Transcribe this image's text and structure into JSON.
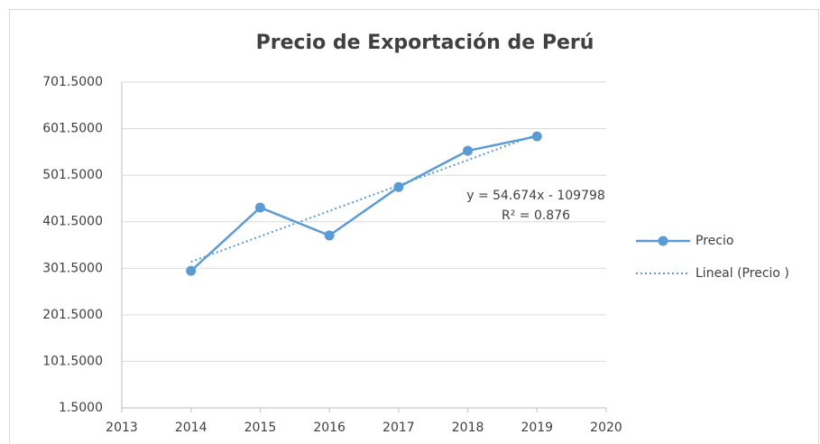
{
  "chart_data": {
    "type": "line",
    "title": "Precio de Exportación de Perú",
    "x": [
      2014,
      2015,
      2016,
      2017,
      2018,
      2019
    ],
    "series": [
      {
        "name": "Precio",
        "color": "#5b9bd5",
        "x": [
          2014,
          2015,
          2016,
          2017,
          2018,
          2019
        ],
        "values": [
          296,
          432,
          372,
          476,
          554,
          585
        ],
        "style": "solid",
        "markers": true
      },
      {
        "name": "Lineal (Precio )",
        "color": "#5b9bd5",
        "x": [
          2014,
          2019
        ],
        "values": [
          315.4,
          588.8
        ],
        "style": "dotted",
        "markers": false
      }
    ],
    "annotations": [
      "y = 54.674x - 109798",
      "R² = 0.876"
    ],
    "xlim": [
      2013,
      2020
    ],
    "xticks": [
      2013,
      2014,
      2015,
      2016,
      2017,
      2018,
      2019,
      2020
    ],
    "ylim": [
      1.5,
      701.5
    ],
    "yticks": [
      {
        "value": 1.5,
        "label": "1.5000"
      },
      {
        "value": 101.5,
        "label": "101.5000"
      },
      {
        "value": 201.5,
        "label": "201.5000"
      },
      {
        "value": 301.5,
        "label": "301.5000"
      },
      {
        "value": 401.5,
        "label": "401.5000"
      },
      {
        "value": 501.5,
        "label": "501.5000"
      },
      {
        "value": 601.5,
        "label": "601.5000"
      },
      {
        "value": 701.5,
        "label": "701.5000"
      }
    ],
    "grid": true,
    "legend": "right"
  }
}
